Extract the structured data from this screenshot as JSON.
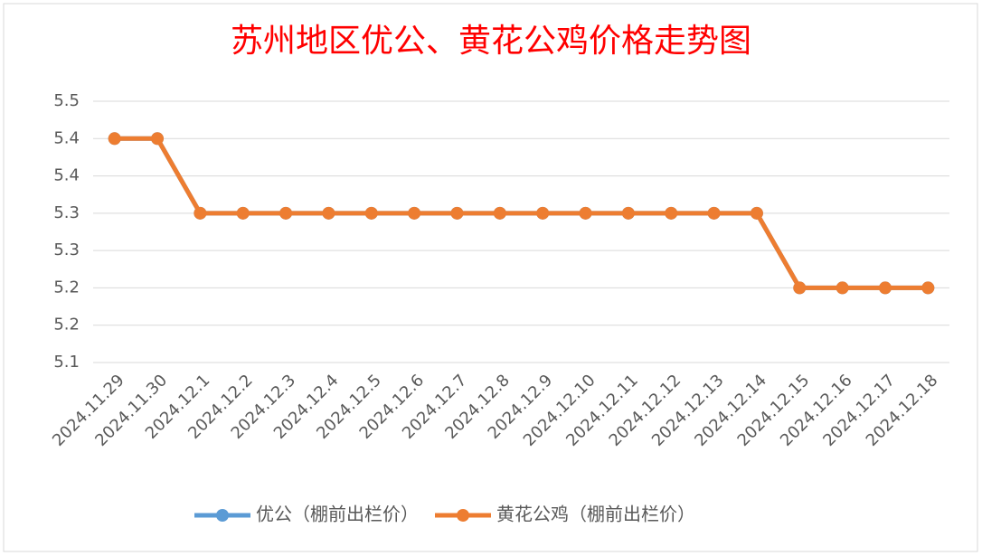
{
  "chart_data": {
    "type": "line",
    "title": "苏州地区优公、黄花公鸡价格走势图",
    "categories": [
      "2024.11.29",
      "2024.11.30",
      "2024.12.1",
      "2024.12.2",
      "2024.12.3",
      "2024.12.4",
      "2024.12.5",
      "2024.12.6",
      "2024.12.7",
      "2024.12.8",
      "2024.12.9",
      "2024.12.10",
      "2024.12.11",
      "2024.12.12",
      "2024.12.13",
      "2024.12.14",
      "2024.12.15",
      "2024.12.16",
      "2024.12.17",
      "2024.12.18"
    ],
    "series": [
      {
        "name": "优公（棚前出栏价）",
        "color": "#5b9bd5",
        "values": [
          5.4,
          5.4,
          5.3,
          5.3,
          5.3,
          5.3,
          5.3,
          5.3,
          5.3,
          5.3,
          5.3,
          5.3,
          5.3,
          5.3,
          5.3,
          5.3,
          5.2,
          5.2,
          5.2,
          5.2
        ]
      },
      {
        "name": "黄花公鸡（棚前出栏价）",
        "color": "#ed7d31",
        "values": [
          5.4,
          5.4,
          5.3,
          5.3,
          5.3,
          5.3,
          5.3,
          5.3,
          5.3,
          5.3,
          5.3,
          5.3,
          5.3,
          5.3,
          5.3,
          5.3,
          5.2,
          5.2,
          5.2,
          5.2
        ]
      }
    ],
    "ylim": [
      5.1,
      5.45
    ],
    "yticks": [
      5.1,
      {
        "value": 5.15,
        "label": "5.2"
      },
      5.2,
      {
        "value": 5.25,
        "label": "5.3"
      },
      5.3,
      {
        "value": 5.35,
        "label": "5.4"
      },
      5.4,
      {
        "value": 5.45,
        "label": "5.5"
      }
    ],
    "grid": true,
    "legend": "bottom"
  }
}
